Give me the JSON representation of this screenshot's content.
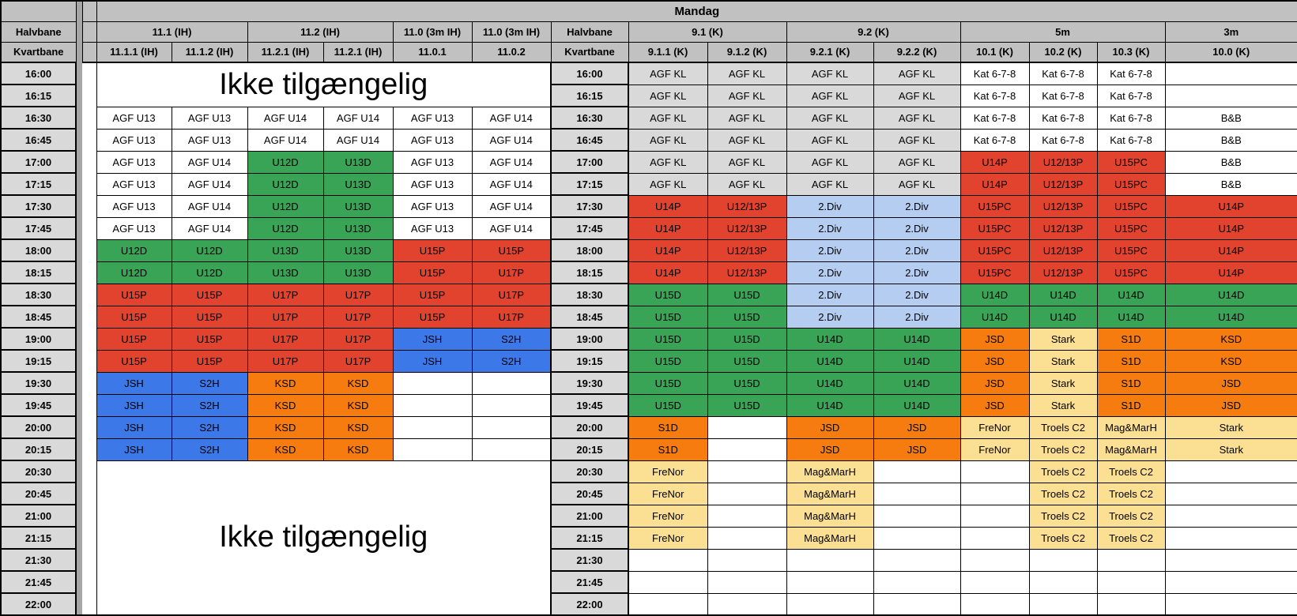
{
  "title": "Mandag",
  "labels": {
    "halvbane": "Halvbane",
    "kvartbane": "Kvartbane",
    "unavailable": "Ikke tilgængelig"
  },
  "colors": {
    "w": "#ffffff",
    "gy": "#d9d9d9",
    "g": "#3aa456",
    "r": "#e2432e",
    "b": "#3c78e8",
    "o": "#f67c10",
    "lb": "#b4cdf0",
    "ly": "#fbdf93",
    "header_gray": "#c1c1c1",
    "time_gray": "#d9d9d9",
    "divider_gray": "#a6a6a6"
  },
  "times": [
    "16:00",
    "16:15",
    "16:30",
    "16:45",
    "17:00",
    "17:15",
    "17:30",
    "17:45",
    "18:00",
    "18:15",
    "18:30",
    "18:45",
    "19:00",
    "19:15",
    "19:30",
    "19:45",
    "20:00",
    "20:15",
    "20:30",
    "20:45",
    "21:00",
    "21:15",
    "21:30",
    "21:45",
    "22:00"
  ],
  "left": {
    "groups": [
      {
        "label": "11.1 (IH)",
        "span": 2
      },
      {
        "label": "11.2 (IH)",
        "span": 2
      },
      {
        "label": "11.0 (3m IH)",
        "span": 1
      },
      {
        "label": "11.0 (3m IH)",
        "span": 1
      }
    ],
    "columns": [
      "11.1.1 (IH)",
      "11.1.2 (IH)",
      "11.2.1 (IH)",
      "11.2.1 (IH)",
      "11.0.1",
      "11.0.2"
    ],
    "merges": [
      {
        "time": "16:00",
        "span": 2
      },
      {
        "time": "20:30",
        "span": 7
      }
    ],
    "rows": {
      "16:30": [
        [
          "AGF U13",
          "w"
        ],
        [
          "AGF U13",
          "w"
        ],
        [
          "AGF U14",
          "w"
        ],
        [
          "AGF U14",
          "w"
        ],
        [
          "AGF U13",
          "w"
        ],
        [
          "AGF U14",
          "w"
        ]
      ],
      "16:45": [
        [
          "AGF U13",
          "w"
        ],
        [
          "AGF U13",
          "w"
        ],
        [
          "AGF U14",
          "w"
        ],
        [
          "AGF U14",
          "w"
        ],
        [
          "AGF U13",
          "w"
        ],
        [
          "AGF U14",
          "w"
        ]
      ],
      "17:00": [
        [
          "AGF U13",
          "w"
        ],
        [
          "AGF U14",
          "w"
        ],
        [
          "U12D",
          "g"
        ],
        [
          "U13D",
          "g"
        ],
        [
          "AGF U13",
          "w"
        ],
        [
          "AGF U14",
          "w"
        ]
      ],
      "17:15": [
        [
          "AGF U13",
          "w"
        ],
        [
          "AGF U14",
          "w"
        ],
        [
          "U12D",
          "g"
        ],
        [
          "U13D",
          "g"
        ],
        [
          "AGF U13",
          "w"
        ],
        [
          "AGF U14",
          "w"
        ]
      ],
      "17:30": [
        [
          "AGF U13",
          "w"
        ],
        [
          "AGF U14",
          "w"
        ],
        [
          "U12D",
          "g"
        ],
        [
          "U13D",
          "g"
        ],
        [
          "AGF U13",
          "w"
        ],
        [
          "AGF U14",
          "w"
        ]
      ],
      "17:45": [
        [
          "AGF U13",
          "w"
        ],
        [
          "AGF U14",
          "w"
        ],
        [
          "U12D",
          "g"
        ],
        [
          "U13D",
          "g"
        ],
        [
          "AGF U13",
          "w"
        ],
        [
          "AGF U14",
          "w"
        ]
      ],
      "18:00": [
        [
          "U12D",
          "g"
        ],
        [
          "U12D",
          "g"
        ],
        [
          "U13D",
          "g"
        ],
        [
          "U13D",
          "g"
        ],
        [
          "U15P",
          "r"
        ],
        [
          "U15P",
          "r"
        ]
      ],
      "18:15": [
        [
          "U12D",
          "g"
        ],
        [
          "U12D",
          "g"
        ],
        [
          "U13D",
          "g"
        ],
        [
          "U13D",
          "g"
        ],
        [
          "U15P",
          "r"
        ],
        [
          "U17P",
          "r"
        ]
      ],
      "18:30": [
        [
          "U15P",
          "r"
        ],
        [
          "U15P",
          "r"
        ],
        [
          "U17P",
          "r"
        ],
        [
          "U17P",
          "r"
        ],
        [
          "U15P",
          "r"
        ],
        [
          "U17P",
          "r"
        ]
      ],
      "18:45": [
        [
          "U15P",
          "r"
        ],
        [
          "U15P",
          "r"
        ],
        [
          "U17P",
          "r"
        ],
        [
          "U17P",
          "r"
        ],
        [
          "U15P",
          "r"
        ],
        [
          "U17P",
          "r"
        ]
      ],
      "19:00": [
        [
          "U15P",
          "r"
        ],
        [
          "U15P",
          "r"
        ],
        [
          "U17P",
          "r"
        ],
        [
          "U17P",
          "r"
        ],
        [
          "JSH",
          "b"
        ],
        [
          "S2H",
          "b"
        ]
      ],
      "19:15": [
        [
          "U15P",
          "r"
        ],
        [
          "U15P",
          "r"
        ],
        [
          "U17P",
          "r"
        ],
        [
          "U17P",
          "r"
        ],
        [
          "JSH",
          "b"
        ],
        [
          "S2H",
          "b"
        ]
      ],
      "19:30": [
        [
          "JSH",
          "b"
        ],
        [
          "S2H",
          "b"
        ],
        [
          "KSD",
          "o"
        ],
        [
          "KSD",
          "o"
        ],
        [
          "",
          "w"
        ],
        [
          "",
          "w"
        ]
      ],
      "19:45": [
        [
          "JSH",
          "b"
        ],
        [
          "S2H",
          "b"
        ],
        [
          "KSD",
          "o"
        ],
        [
          "KSD",
          "o"
        ],
        [
          "",
          "w"
        ],
        [
          "",
          "w"
        ]
      ],
      "20:00": [
        [
          "JSH",
          "b"
        ],
        [
          "S2H",
          "b"
        ],
        [
          "KSD",
          "o"
        ],
        [
          "KSD",
          "o"
        ],
        [
          "",
          "w"
        ],
        [
          "",
          "w"
        ]
      ],
      "20:15": [
        [
          "JSH",
          "b"
        ],
        [
          "S2H",
          "b"
        ],
        [
          "KSD",
          "o"
        ],
        [
          "KSD",
          "o"
        ],
        [
          "",
          "w"
        ],
        [
          "",
          "w"
        ]
      ]
    }
  },
  "right": {
    "groups": [
      {
        "label": "9.1 (K)",
        "span": 2
      },
      {
        "label": "9.2 (K)",
        "span": 2
      },
      {
        "label": "5m",
        "span": 3
      },
      {
        "label": "3m",
        "span": 1
      }
    ],
    "columns": [
      "9.1.1 (K)",
      "9.1.2 (K)",
      "9.2.1 (K)",
      "9.2.2 (K)",
      "10.1 (K)",
      "10.2 (K)",
      "10.3 (K)",
      "10.0 (K)"
    ],
    "rows": {
      "16:00": [
        [
          "AGF KL",
          "gy"
        ],
        [
          "AGF KL",
          "gy"
        ],
        [
          "AGF KL",
          "gy"
        ],
        [
          "AGF KL",
          "gy"
        ],
        [
          "Kat 6-7-8",
          "w"
        ],
        [
          "Kat 6-7-8",
          "w"
        ],
        [
          "Kat 6-7-8",
          "w"
        ],
        [
          "",
          "w"
        ]
      ],
      "16:15": [
        [
          "AGF KL",
          "gy"
        ],
        [
          "AGF KL",
          "gy"
        ],
        [
          "AGF KL",
          "gy"
        ],
        [
          "AGF KL",
          "gy"
        ],
        [
          "Kat 6-7-8",
          "w"
        ],
        [
          "Kat 6-7-8",
          "w"
        ],
        [
          "Kat 6-7-8",
          "w"
        ],
        [
          "",
          "w"
        ]
      ],
      "16:30": [
        [
          "AGF KL",
          "gy"
        ],
        [
          "AGF KL",
          "gy"
        ],
        [
          "AGF KL",
          "gy"
        ],
        [
          "AGF KL",
          "gy"
        ],
        [
          "Kat 6-7-8",
          "w"
        ],
        [
          "Kat 6-7-8",
          "w"
        ],
        [
          "Kat 6-7-8",
          "w"
        ],
        [
          "B&B",
          "w"
        ]
      ],
      "16:45": [
        [
          "AGF KL",
          "gy"
        ],
        [
          "AGF KL",
          "gy"
        ],
        [
          "AGF KL",
          "gy"
        ],
        [
          "AGF KL",
          "gy"
        ],
        [
          "Kat 6-7-8",
          "w"
        ],
        [
          "Kat 6-7-8",
          "w"
        ],
        [
          "Kat 6-7-8",
          "w"
        ],
        [
          "B&B",
          "w"
        ]
      ],
      "17:00": [
        [
          "AGF KL",
          "gy"
        ],
        [
          "AGF KL",
          "gy"
        ],
        [
          "AGF KL",
          "gy"
        ],
        [
          "AGF KL",
          "gy"
        ],
        [
          "U14P",
          "r"
        ],
        [
          "U12/13P",
          "r"
        ],
        [
          "U15PC",
          "r"
        ],
        [
          "B&B",
          "w"
        ]
      ],
      "17:15": [
        [
          "AGF KL",
          "gy"
        ],
        [
          "AGF KL",
          "gy"
        ],
        [
          "AGF KL",
          "gy"
        ],
        [
          "AGF KL",
          "gy"
        ],
        [
          "U14P",
          "r"
        ],
        [
          "U12/13P",
          "r"
        ],
        [
          "U15PC",
          "r"
        ],
        [
          "B&B",
          "w"
        ]
      ],
      "17:30": [
        [
          "U14P",
          "r"
        ],
        [
          "U12/13P",
          "r"
        ],
        [
          "2.Div",
          "lb"
        ],
        [
          "2.Div",
          "lb"
        ],
        [
          "U15PC",
          "r"
        ],
        [
          "U12/13P",
          "r"
        ],
        [
          "U15PC",
          "r"
        ],
        [
          "U14P",
          "r"
        ]
      ],
      "17:45": [
        [
          "U14P",
          "r"
        ],
        [
          "U12/13P",
          "r"
        ],
        [
          "2.Div",
          "lb"
        ],
        [
          "2.Div",
          "lb"
        ],
        [
          "U15PC",
          "r"
        ],
        [
          "U12/13P",
          "r"
        ],
        [
          "U15PC",
          "r"
        ],
        [
          "U14P",
          "r"
        ]
      ],
      "18:00": [
        [
          "U14P",
          "r"
        ],
        [
          "U12/13P",
          "r"
        ],
        [
          "2.Div",
          "lb"
        ],
        [
          "2.Div",
          "lb"
        ],
        [
          "U15PC",
          "r"
        ],
        [
          "U12/13P",
          "r"
        ],
        [
          "U15PC",
          "r"
        ],
        [
          "U14P",
          "r"
        ]
      ],
      "18:15": [
        [
          "U14P",
          "r"
        ],
        [
          "U12/13P",
          "r"
        ],
        [
          "2.Div",
          "lb"
        ],
        [
          "2.Div",
          "lb"
        ],
        [
          "U15PC",
          "r"
        ],
        [
          "U12/13P",
          "r"
        ],
        [
          "U15PC",
          "r"
        ],
        [
          "U14P",
          "r"
        ]
      ],
      "18:30": [
        [
          "U15D",
          "g"
        ],
        [
          "U15D",
          "g"
        ],
        [
          "2.Div",
          "lb"
        ],
        [
          "2.Div",
          "lb"
        ],
        [
          "U14D",
          "g"
        ],
        [
          "U14D",
          "g"
        ],
        [
          "U14D",
          "g"
        ],
        [
          "U14D",
          "g"
        ]
      ],
      "18:45": [
        [
          "U15D",
          "g"
        ],
        [
          "U15D",
          "g"
        ],
        [
          "2.Div",
          "lb"
        ],
        [
          "2.Div",
          "lb"
        ],
        [
          "U14D",
          "g"
        ],
        [
          "U14D",
          "g"
        ],
        [
          "U14D",
          "g"
        ],
        [
          "U14D",
          "g"
        ]
      ],
      "19:00": [
        [
          "U15D",
          "g"
        ],
        [
          "U15D",
          "g"
        ],
        [
          "U14D",
          "g"
        ],
        [
          "U14D",
          "g"
        ],
        [
          "JSD",
          "o"
        ],
        [
          "Stark",
          "ly"
        ],
        [
          "S1D",
          "o"
        ],
        [
          "KSD",
          "o"
        ]
      ],
      "19:15": [
        [
          "U15D",
          "g"
        ],
        [
          "U15D",
          "g"
        ],
        [
          "U14D",
          "g"
        ],
        [
          "U14D",
          "g"
        ],
        [
          "JSD",
          "o"
        ],
        [
          "Stark",
          "ly"
        ],
        [
          "S1D",
          "o"
        ],
        [
          "KSD",
          "o"
        ]
      ],
      "19:30": [
        [
          "U15D",
          "g"
        ],
        [
          "U15D",
          "g"
        ],
        [
          "U14D",
          "g"
        ],
        [
          "U14D",
          "g"
        ],
        [
          "JSD",
          "o"
        ],
        [
          "Stark",
          "ly"
        ],
        [
          "S1D",
          "o"
        ],
        [
          "JSD",
          "o"
        ]
      ],
      "19:45": [
        [
          "U15D",
          "g"
        ],
        [
          "U15D",
          "g"
        ],
        [
          "U14D",
          "g"
        ],
        [
          "U14D",
          "g"
        ],
        [
          "JSD",
          "o"
        ],
        [
          "Stark",
          "ly"
        ],
        [
          "S1D",
          "o"
        ],
        [
          "JSD",
          "o"
        ]
      ],
      "20:00": [
        [
          "S1D",
          "o"
        ],
        [
          "",
          "w"
        ],
        [
          "JSD",
          "o"
        ],
        [
          "JSD",
          "o"
        ],
        [
          "FreNor",
          "ly"
        ],
        [
          "Troels C2",
          "ly"
        ],
        [
          "Mag&MarH",
          "ly"
        ],
        [
          "Stark",
          "ly"
        ]
      ],
      "20:15": [
        [
          "S1D",
          "o"
        ],
        [
          "",
          "w"
        ],
        [
          "JSD",
          "o"
        ],
        [
          "JSD",
          "o"
        ],
        [
          "FreNor",
          "ly"
        ],
        [
          "Troels C2",
          "ly"
        ],
        [
          "Mag&MarH",
          "ly"
        ],
        [
          "Stark",
          "ly"
        ]
      ],
      "20:30": [
        [
          "FreNor",
          "ly"
        ],
        [
          "",
          "w"
        ],
        [
          "Mag&MarH",
          "ly"
        ],
        [
          "",
          "w"
        ],
        [
          "",
          "w"
        ],
        [
          "Troels C2",
          "ly"
        ],
        [
          "Troels C2",
          "ly"
        ],
        [
          "",
          "w"
        ]
      ],
      "20:45": [
        [
          "FreNor",
          "ly"
        ],
        [
          "",
          "w"
        ],
        [
          "Mag&MarH",
          "ly"
        ],
        [
          "",
          "w"
        ],
        [
          "",
          "w"
        ],
        [
          "Troels C2",
          "ly"
        ],
        [
          "Troels C2",
          "ly"
        ],
        [
          "",
          "w"
        ]
      ],
      "21:00": [
        [
          "FreNor",
          "ly"
        ],
        [
          "",
          "w"
        ],
        [
          "Mag&MarH",
          "ly"
        ],
        [
          "",
          "w"
        ],
        [
          "",
          "w"
        ],
        [
          "Troels C2",
          "ly"
        ],
        [
          "Troels C2",
          "ly"
        ],
        [
          "",
          "w"
        ]
      ],
      "21:15": [
        [
          "FreNor",
          "ly"
        ],
        [
          "",
          "w"
        ],
        [
          "Mag&MarH",
          "ly"
        ],
        [
          "",
          "w"
        ],
        [
          "",
          "w"
        ],
        [
          "Troels C2",
          "ly"
        ],
        [
          "Troels C2",
          "ly"
        ],
        [
          "",
          "w"
        ]
      ],
      "21:30": [
        [
          "",
          "w"
        ],
        [
          "",
          "w"
        ],
        [
          "",
          "w"
        ],
        [
          "",
          "w"
        ],
        [
          "",
          "w"
        ],
        [
          "",
          "w"
        ],
        [
          "",
          "w"
        ],
        [
          "",
          "w"
        ]
      ],
      "21:45": [
        [
          "",
          "w"
        ],
        [
          "",
          "w"
        ],
        [
          "",
          "w"
        ],
        [
          "",
          "w"
        ],
        [
          "",
          "w"
        ],
        [
          "",
          "w"
        ],
        [
          "",
          "w"
        ],
        [
          "",
          "w"
        ]
      ],
      "22:00": [
        [
          "",
          "w"
        ],
        [
          "",
          "w"
        ],
        [
          "",
          "w"
        ],
        [
          "",
          "w"
        ],
        [
          "",
          "w"
        ],
        [
          "",
          "w"
        ],
        [
          "",
          "w"
        ],
        [
          "",
          "w"
        ]
      ]
    }
  }
}
